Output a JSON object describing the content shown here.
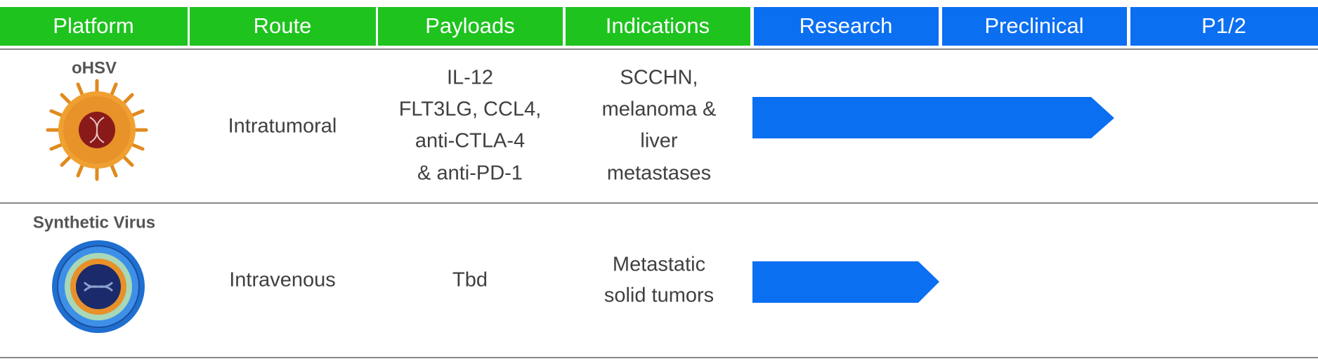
{
  "header": [
    "Platform",
    "Route",
    "Payloads",
    "Indications",
    "Research",
    "Preclinical",
    "P1/2"
  ],
  "rows": [
    {
      "platform": "oHSV",
      "route": "Intratumoral",
      "payloads": [
        "IL-12",
        "FLT3LG, CCL4,",
        "anti-CTLA-4",
        "& anti-PD-1"
      ],
      "indications": [
        "SCCHN,",
        "melanoma &",
        "liver",
        "metastases"
      ]
    },
    {
      "platform": "Synthetic Virus",
      "route": "Intravenous",
      "payloads": [
        "Tbd"
      ],
      "indications": [
        "Metastatic",
        "solid tumors"
      ]
    }
  ]
}
